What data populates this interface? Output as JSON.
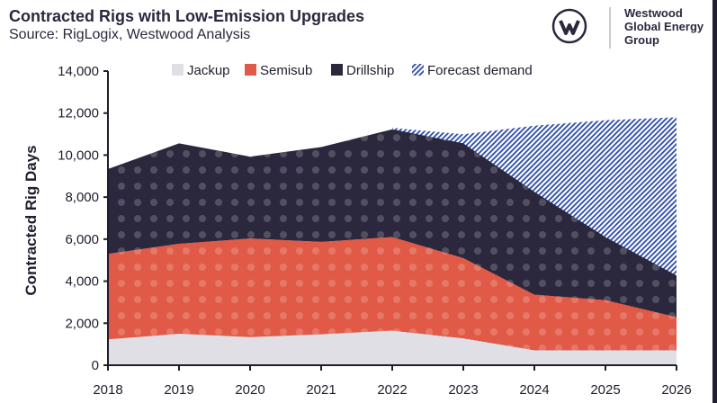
{
  "header": {
    "title": "Contracted Rigs with Low-Emission Upgrades",
    "subtitle": "Source: RigLogix, Westwood Analysis"
  },
  "logo": {
    "lines": [
      "Westwood",
      "Global Energy",
      "Group"
    ],
    "mark": "W"
  },
  "chart_data": {
    "type": "area",
    "stacked": true,
    "title": "Contracted Rigs with Low-Emission Upgrades",
    "xlabel": "",
    "ylabel": "Contracted Rig Days",
    "x": [
      "2018",
      "2019",
      "2020",
      "2021",
      "2022",
      "2023",
      "2024",
      "2025",
      "2026"
    ],
    "ylim": [
      0,
      14000
    ],
    "yticks": [
      0,
      2000,
      4000,
      6000,
      8000,
      10000,
      12000,
      14000
    ],
    "ytick_labels": [
      "0",
      "2,000",
      "4,000",
      "6,000",
      "8,000",
      "10,000",
      "12,000",
      "14,000"
    ],
    "grid": false,
    "legend_position": "top",
    "series": [
      {
        "name": "Jackup",
        "color": "#e0dfe5",
        "values": [
          1230,
          1500,
          1340,
          1470,
          1650,
          1280,
          710,
          710,
          710
        ]
      },
      {
        "name": "Semisub",
        "color": "#e05a47",
        "values": [
          4070,
          4280,
          4690,
          4400,
          4450,
          3820,
          2650,
          2390,
          1580
        ]
      },
      {
        "name": "Drillship",
        "color": "#2b283d",
        "values": [
          4040,
          4780,
          3900,
          4510,
          5130,
          5460,
          4890,
          3000,
          1980
        ]
      }
    ],
    "forecast": {
      "name": "Forecast demand",
      "color": "#2a4aa8",
      "style": "hatched",
      "x": [
        "2022",
        "2023",
        "2024",
        "2025",
        "2026"
      ],
      "total_values": [
        11300,
        10990,
        11400,
        11660,
        11800
      ]
    }
  }
}
